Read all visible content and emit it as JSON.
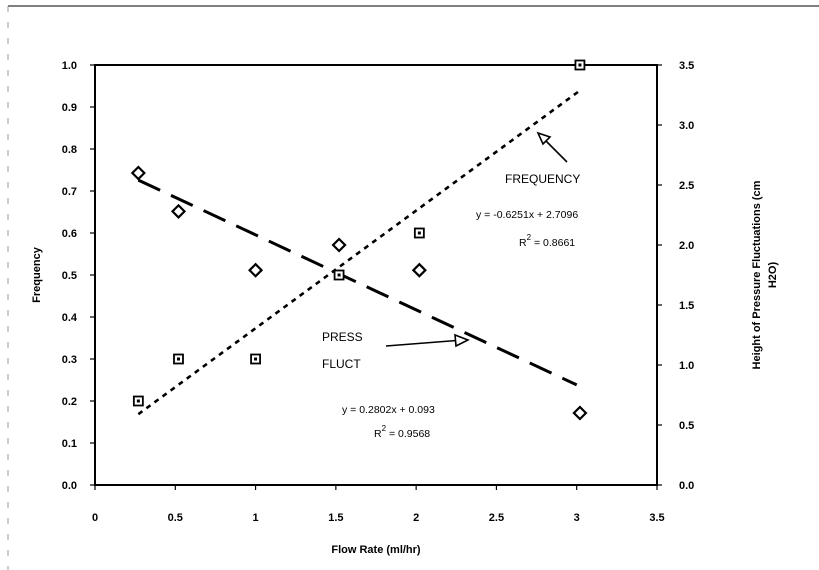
{
  "chart_data": {
    "type": "scatter",
    "xlabel": "Flow Rate (ml/hr)",
    "ylabel": "Frequency",
    "ylabel2_line1": "Height of Pressure Fluctuations (cm",
    "ylabel2_line2": "H2O)",
    "xlim": [
      0,
      3.5
    ],
    "ylim": [
      0,
      1.0
    ],
    "ylim2": [
      0,
      3.5
    ],
    "x_ticks": [
      "0",
      "0.5",
      "1",
      "1.5",
      "2",
      "2.5",
      "3",
      "3.5"
    ],
    "y_ticks": [
      "0.0",
      "0.1",
      "0.2",
      "0.3",
      "0.4",
      "0.5",
      "0.6",
      "0.7",
      "0.8",
      "0.9",
      "1.0"
    ],
    "y2_ticks": [
      "0.0",
      "0.5",
      "1.0",
      "1.5",
      "2.0",
      "2.5",
      "3.0",
      "3.5"
    ],
    "series": [
      {
        "axis": "left",
        "marker": "square",
        "x": [
          0.27,
          0.52,
          1.0,
          1.52,
          2.02,
          3.02
        ],
        "y": [
          0.2,
          0.3,
          0.3,
          0.5,
          0.6,
          1.0
        ],
        "trendline": {
          "style": "dotted",
          "x0": 0.27,
          "x1": 3.02,
          "fit": [
            0.2802,
            0.093
          ]
        }
      },
      {
        "axis": "right",
        "marker": "diamond",
        "x": [
          0.27,
          0.52,
          1.0,
          1.52,
          2.02,
          3.02
        ],
        "y": [
          2.6,
          2.28,
          1.79,
          2.0,
          1.79,
          0.6
        ],
        "trendline": {
          "style": "dashed",
          "x0": 0.27,
          "x1": 3.0,
          "fit": [
            -0.6251,
            2.7096
          ]
        }
      }
    ],
    "annotations": {
      "frequency_label": "FREQUENCY",
      "press_label_line1": "PRESS",
      "press_label_line2": "FLUCT",
      "eq_press": "y = -0.6251x + 2.7096",
      "r2_press_prefix": "R",
      "r2_press_sup": "2",
      "r2_press_value": " = 0.8661",
      "eq_freq": "y = 0.2802x + 0.093",
      "r2_freq_prefix": "R",
      "r2_freq_sup": "2",
      "r2_freq_value": " = 0.9568"
    },
    "grid": false,
    "legend": "none"
  }
}
